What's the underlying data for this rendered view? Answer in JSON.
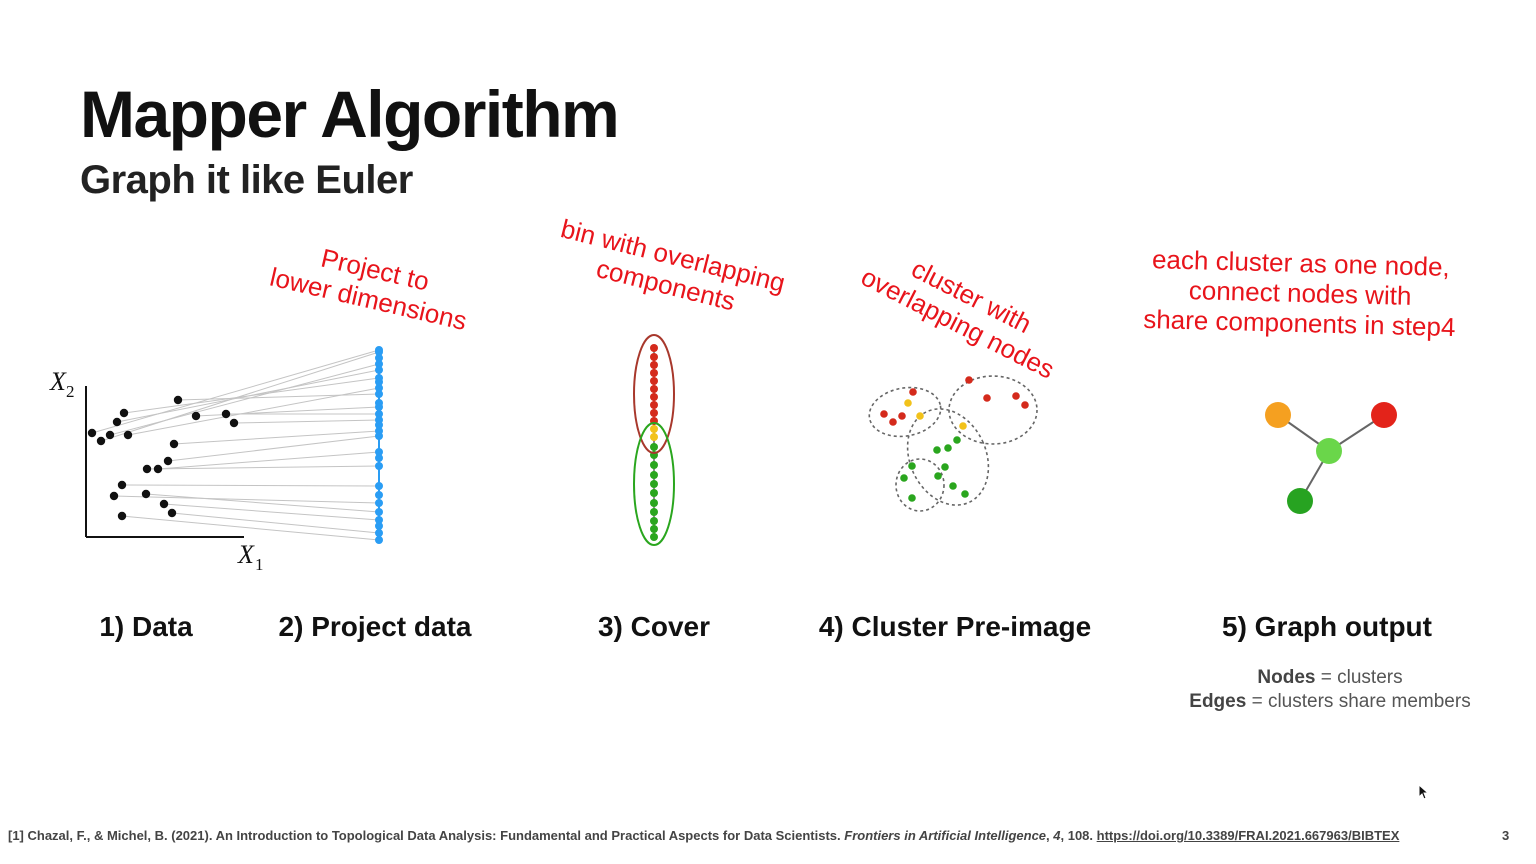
{
  "slide": {
    "title": "Mapper Algorithm",
    "subtitle": "Graph it like Euler",
    "page_number": "3"
  },
  "axes": {
    "x_label": "X",
    "x_sub": "1",
    "y_label": "X",
    "y_sub": "2"
  },
  "annotations": {
    "project": [
      "Project to",
      "lower dimensions"
    ],
    "cover": [
      "bin with overlapping",
      "components"
    ],
    "cluster": [
      "cluster with",
      "overlapping nodes"
    ],
    "graph": [
      "each cluster as one node,",
      "connect nodes with",
      "share components in step4"
    ]
  },
  "steps": {
    "data": "1) Data",
    "project": "2) Project data",
    "cover": "3) Cover",
    "cluster": "4) Cluster Pre-image",
    "graph": "5) Graph output"
  },
  "legend": {
    "nodes_term": "Nodes",
    "nodes_text": " = clusters",
    "edges_term": "Edges",
    "edges_text": " = clusters share members"
  },
  "footer": {
    "ref": "[1] Chazal, F., & Michel, B. (2021). An Introduction to Topological Data Analysis: Fundamental and Practical Aspects for Data Scientists. ",
    "journal": "Frontiers in Artificial Intelligence",
    "volume": "4",
    "pages": ", 108. ",
    "sep": ", ",
    "url": "https://doi.org/10.3389/FRAI.2021.667963/BIBTEX"
  },
  "colors": {
    "annotation": "#e8141b",
    "projected_point": "#2a9df4",
    "red": "#d42a1c",
    "yellow": "#f2c21a",
    "green": "#2aa61e",
    "orange": "#f5a020",
    "light_green": "#6ad64a"
  }
}
